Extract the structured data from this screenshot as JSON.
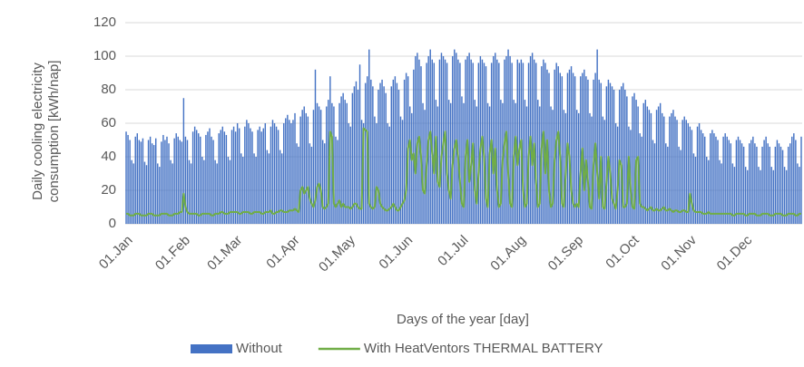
{
  "chart_data": {
    "type": "bar",
    "ylabel": [
      "Daily cooling electricity",
      "consumption [kWh/nap]"
    ],
    "xlabel": "Days of the year [day]",
    "xlim": [
      0,
      365
    ],
    "xticks": [
      {
        "value": 0,
        "label": "01.Jan"
      },
      {
        "value": 31,
        "label": "01.Feb"
      },
      {
        "value": 59,
        "label": "01.Mar"
      },
      {
        "value": 90,
        "label": "01.Apr"
      },
      {
        "value": 120,
        "label": "01.May"
      },
      {
        "value": 151,
        "label": "01.Jun"
      },
      {
        "value": 181,
        "label": "01.Jul"
      },
      {
        "value": 212,
        "label": "01.Aug"
      },
      {
        "value": 243,
        "label": "01.Sep"
      },
      {
        "value": 273,
        "label": "01.Oct"
      },
      {
        "value": 304,
        "label": "01.Nov"
      },
      {
        "value": 334,
        "label": "01.Dec"
      }
    ],
    "ylim": [
      0,
      120
    ],
    "yticks": [
      0,
      20,
      40,
      60,
      80,
      100,
      120
    ],
    "grid": true,
    "legend": "bottom",
    "series": [
      {
        "name": "Without",
        "type": "bar",
        "color": "#4472c4",
        "values": [
          55,
          53,
          50,
          38,
          36,
          52,
          54,
          50,
          49,
          51,
          37,
          35,
          50,
          52,
          48,
          47,
          51,
          36,
          34,
          49,
          53,
          50,
          52,
          48,
          38,
          36,
          51,
          54,
          52,
          50,
          49,
          75,
          52,
          50,
          38,
          36,
          55,
          58,
          56,
          54,
          52,
          40,
          38,
          53,
          55,
          57,
          52,
          50,
          38,
          36,
          54,
          56,
          58,
          55,
          53,
          40,
          38,
          56,
          58,
          55,
          60,
          57,
          42,
          40,
          58,
          62,
          60,
          57,
          55,
          42,
          40,
          56,
          58,
          55,
          57,
          60,
          44,
          42,
          58,
          62,
          60,
          58,
          56,
          44,
          42,
          60,
          63,
          65,
          62,
          60,
          62,
          66,
          48,
          46,
          64,
          68,
          70,
          66,
          64,
          48,
          46,
          68,
          92,
          72,
          70,
          68,
          50,
          48,
          70,
          74,
          88,
          72,
          70,
          52,
          50,
          72,
          76,
          78,
          74,
          72,
          60,
          58,
          78,
          82,
          85,
          80,
          95,
          62,
          60,
          84,
          88,
          104,
          86,
          82,
          64,
          60,
          80,
          84,
          86,
          82,
          78,
          60,
          58,
          82,
          86,
          88,
          84,
          80,
          64,
          62,
          86,
          90,
          88,
          70,
          66,
          92,
          100,
          102,
          98,
          94,
          72,
          68,
          96,
          100,
          104,
          98,
          96,
          74,
          70,
          98,
          102,
          100,
          98,
          96,
          74,
          72,
          100,
          104,
          102,
          98,
          96,
          76,
          72,
          98,
          100,
          102,
          98,
          96,
          74,
          70,
          96,
          100,
          98,
          96,
          94,
          72,
          70,
          96,
          100,
          102,
          98,
          96,
          74,
          72,
          98,
          100,
          104,
          100,
          96,
          74,
          72,
          98,
          96,
          98,
          96,
          74,
          70,
          96,
          100,
          102,
          98,
          96,
          74,
          70,
          94,
          98,
          96,
          92,
          90,
          70,
          68,
          92,
          96,
          94,
          90,
          88,
          68,
          66,
          90,
          92,
          94,
          90,
          88,
          68,
          66,
          88,
          90,
          92,
          88,
          86,
          66,
          64,
          86,
          90,
          104,
          86,
          84,
          64,
          62,
          82,
          86,
          84,
          82,
          80,
          60,
          58,
          80,
          82,
          84,
          80,
          76,
          58,
          56,
          76,
          78,
          74,
          70,
          54,
          52,
          72,
          74,
          70,
          68,
          66,
          50,
          48,
          68,
          70,
          72,
          66,
          64,
          48,
          46,
          64,
          66,
          68,
          64,
          62,
          46,
          44,
          62,
          64,
          62,
          60,
          58,
          56,
          42,
          40,
          58,
          60,
          56,
          54,
          52,
          40,
          38,
          54,
          56,
          54,
          52,
          50,
          38,
          36,
          52,
          54,
          52,
          50,
          48,
          36,
          34,
          50,
          52,
          50,
          48,
          46,
          34,
          32,
          48,
          50,
          52,
          48,
          46,
          34,
          32,
          46,
          50,
          52,
          48,
          46,
          34,
          32,
          46,
          50,
          48,
          46,
          44,
          34,
          32,
          46,
          48,
          52,
          54,
          50,
          36,
          34,
          52
        ]
      },
      {
        "name": "With HeatVentors THERMAL BATTERY",
        "type": "line",
        "color": "#70ad47",
        "values": [
          6,
          6,
          5,
          5,
          5,
          6,
          6,
          6,
          5,
          5,
          5,
          5,
          6,
          6,
          6,
          5,
          5,
          5,
          5,
          6,
          6,
          6,
          6,
          5,
          5,
          5,
          6,
          6,
          6,
          7,
          7,
          18,
          10,
          7,
          6,
          6,
          6,
          6,
          6,
          5,
          5,
          6,
          6,
          6,
          6,
          6,
          5,
          5,
          6,
          6,
          6,
          7,
          7,
          6,
          6,
          6,
          7,
          7,
          7,
          7,
          7,
          6,
          6,
          7,
          7,
          7,
          7,
          6,
          6,
          7,
          7,
          7,
          7,
          6,
          6,
          7,
          7,
          7,
          8,
          6,
          6,
          7,
          7,
          8,
          8,
          7,
          7,
          7,
          8,
          8,
          8,
          9,
          8,
          7,
          20,
          22,
          18,
          20,
          22,
          15,
          12,
          10,
          14,
          22,
          24,
          20,
          10,
          9,
          10,
          12,
          55,
          52,
          12,
          10,
          12,
          14,
          10,
          12,
          10,
          10,
          10,
          9,
          10,
          12,
          12,
          10,
          9,
          9,
          57,
          56,
          55,
          12,
          10,
          9,
          10,
          22,
          20,
          12,
          10,
          9,
          8,
          8,
          9,
          10,
          12,
          10,
          8,
          8,
          10,
          12,
          14,
          20,
          45,
          50,
          38,
          42,
          30,
          48,
          52,
          40,
          20,
          18,
          35,
          50,
          55,
          42,
          30,
          52,
          25,
          22,
          40,
          48,
          55,
          30,
          20,
          15,
          35,
          45,
          50,
          40,
          25,
          12,
          10,
          40,
          50,
          25,
          35,
          48,
          20,
          12,
          30,
          45,
          52,
          40,
          15,
          10,
          42,
          50,
          30,
          45,
          20,
          10,
          12,
          38,
          48,
          55,
          30,
          12,
          10,
          40,
          52,
          35,
          45,
          50,
          20,
          10,
          12,
          40,
          52,
          35,
          48,
          25,
          10,
          12,
          45,
          55,
          30,
          50,
          20,
          10,
          12,
          38,
          50,
          55,
          40,
          12,
          10,
          30,
          48,
          40,
          20,
          12,
          10,
          12,
          10,
          30,
          45,
          20,
          38,
          25,
          10,
          9,
          35,
          48,
          30,
          15,
          40,
          10,
          9,
          25,
          40,
          30,
          15,
          12,
          9,
          20,
          38,
          35,
          10,
          10,
          12,
          40,
          20,
          10,
          9,
          38,
          40,
          12,
          10,
          10,
          9,
          8,
          9,
          10,
          8,
          8,
          9,
          8,
          8,
          9,
          10,
          8,
          8,
          9,
          8,
          7,
          8,
          8,
          7,
          7,
          8,
          8,
          7,
          7,
          18,
          12,
          8,
          7,
          7,
          7,
          7,
          6,
          6,
          6,
          7,
          6,
          6,
          6,
          6,
          6,
          6,
          6,
          6,
          6,
          6,
          6,
          6,
          5,
          5,
          6,
          6,
          6,
          6,
          6,
          5,
          5,
          6,
          6,
          6,
          6,
          5,
          5,
          5,
          6,
          6,
          6,
          6,
          5,
          5,
          5,
          6,
          6,
          6,
          6,
          5,
          5,
          5,
          6,
          6,
          6,
          6,
          5,
          5,
          6,
          6
        ]
      }
    ]
  }
}
